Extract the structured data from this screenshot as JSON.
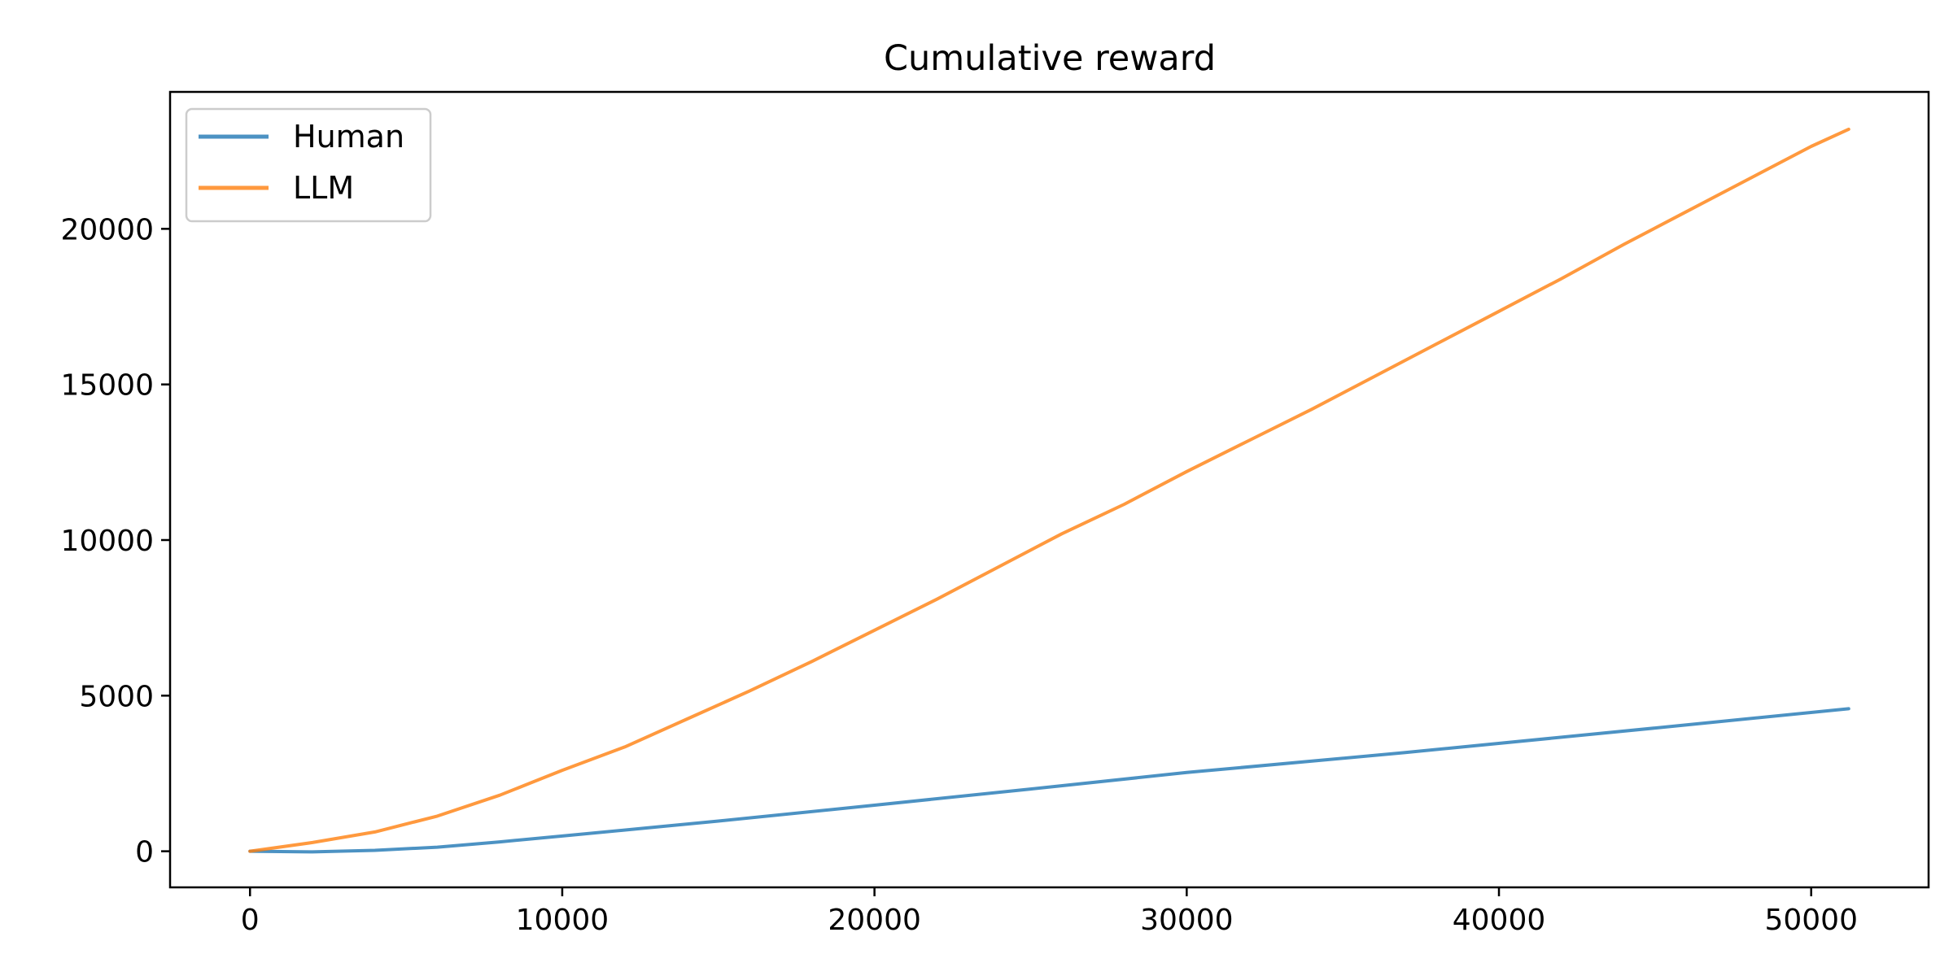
{
  "chart_data": {
    "type": "line",
    "title": "Cumulative reward",
    "xlabel": "",
    "ylabel": "",
    "xlim": [
      -2560,
      53760
    ],
    "ylim": [
      -1160,
      24400
    ],
    "xticks": [
      0,
      10000,
      20000,
      30000,
      40000,
      50000
    ],
    "yticks": [
      0,
      5000,
      10000,
      15000,
      20000
    ],
    "grid": false,
    "legend_position": "upper-left",
    "series": [
      {
        "name": "Human",
        "color": "#1f77b4",
        "x": [
          0,
          2000,
          4000,
          6000,
          8000,
          10000,
          15000,
          20000,
          25000,
          30000,
          37000,
          45000,
          51200
        ],
        "y": [
          0,
          -20,
          30,
          130,
          300,
          490,
          970,
          1480,
          2000,
          2530,
          3170,
          3960,
          4580
        ]
      },
      {
        "name": "LLM",
        "color": "#ff7f0e",
        "x": [
          0,
          2000,
          4000,
          6000,
          8000,
          9000,
          10000,
          12000,
          14000,
          16000,
          18000,
          20000,
          22000,
          24000,
          26000,
          28000,
          30000,
          32000,
          34000,
          36000,
          38000,
          40000,
          42000,
          44000,
          46000,
          48000,
          50000,
          51200
        ],
        "y": [
          0,
          280,
          620,
          1130,
          1800,
          2200,
          2600,
          3350,
          4250,
          5150,
          6100,
          7100,
          8100,
          9150,
          10200,
          11150,
          12200,
          13200,
          14200,
          15250,
          16300,
          17350,
          18400,
          19500,
          20550,
          21600,
          22650,
          23200
        ]
      }
    ]
  }
}
